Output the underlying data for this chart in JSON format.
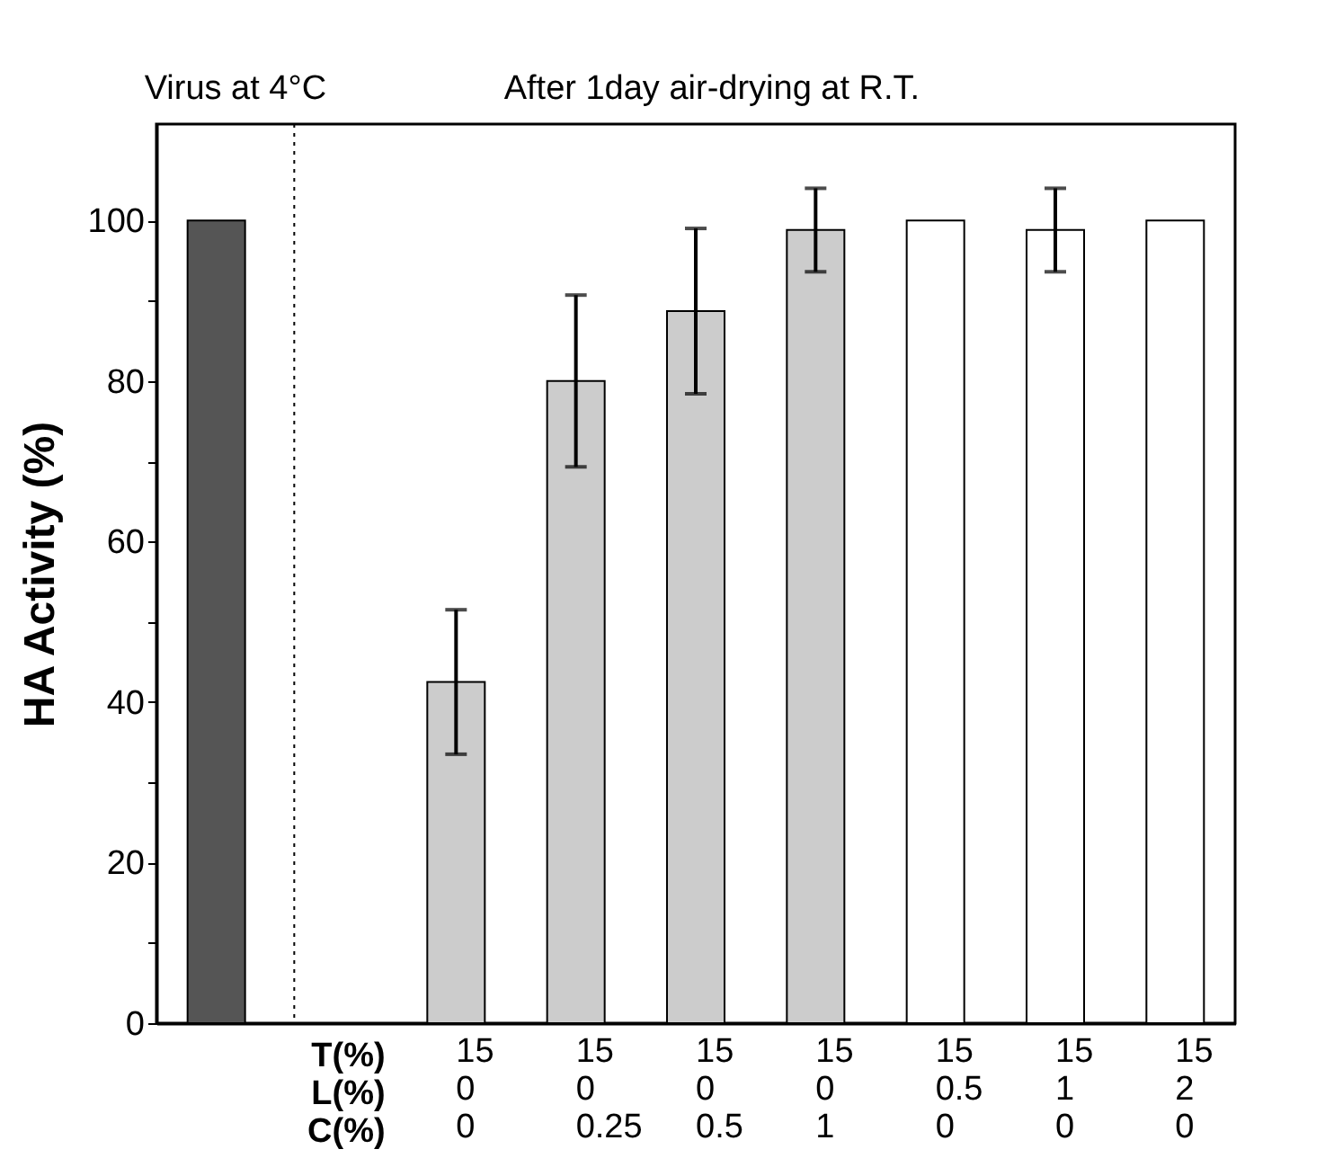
{
  "chart_data": {
    "type": "bar",
    "ylabel": "HA Activity (%)",
    "categories": [
      null,
      null,
      "15\n0\n0",
      "15\n0\n0.25",
      "15\n0\n0.5",
      "15\n0\n1",
      "15\n0.5\n0",
      "15\n1\n0",
      "15\n2\n0"
    ],
    "values": [
      100,
      null,
      42.5,
      80,
      88.7,
      98.8,
      100,
      98.8,
      100
    ],
    "errors": [
      null,
      null,
      9,
      10.7,
      10.3,
      5.2,
      null,
      5.2,
      null
    ],
    "colors": [
      "#555555",
      "#cccccc",
      "#cccccc",
      "#cccccc",
      "#cccccc",
      "#cccccc",
      "#ffffff",
      "#ffffff",
      "#ffffff"
    ],
    "ylim": [
      0,
      112
    ],
    "yticks": [
      0,
      {
        "value": 10,
        "label": null
      },
      20,
      {
        "value": 30,
        "label": null
      },
      40,
      {
        "value": 50,
        "label": null
      },
      60,
      {
        "value": 70,
        "label": null
      },
      80,
      {
        "value": 90,
        "label": null
      },
      100
    ],
    "annotations": [
      "Virus at 4°C",
      "After 1day air-drying at R.T.",
      "T(%)",
      "L(%)",
      "C(%)"
    ],
    "grid": false
  }
}
